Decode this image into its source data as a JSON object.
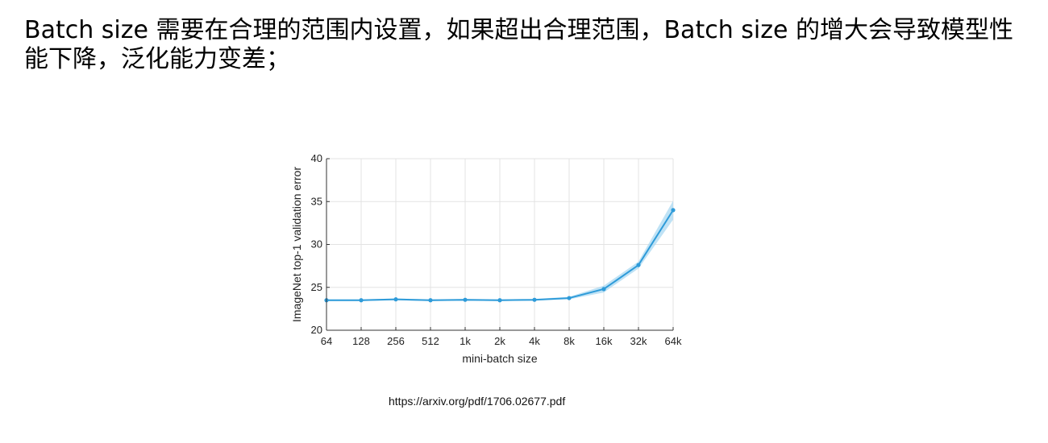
{
  "headline": "Batch size 需要在合理的范围内设置，如果超出合理范围，Batch size 的增大会导致模型性能下降，泛化能力变差；",
  "chart_data": {
    "type": "line",
    "categories": [
      "64",
      "128",
      "256",
      "512",
      "1k",
      "2k",
      "4k",
      "8k",
      "16k",
      "32k",
      "64k"
    ],
    "series": [
      {
        "values": [
          23.5,
          23.5,
          23.6,
          23.5,
          23.55,
          23.5,
          23.55,
          23.75,
          24.8,
          27.6,
          34.0
        ],
        "lower": [
          23.4,
          23.4,
          23.5,
          23.4,
          23.45,
          23.4,
          23.45,
          23.6,
          24.4,
          27.2,
          32.9
        ],
        "upper": [
          23.6,
          23.6,
          23.7,
          23.6,
          23.65,
          23.6,
          23.65,
          23.9,
          25.2,
          28.0,
          35.1
        ]
      }
    ],
    "xlabel": "mini-batch size",
    "ylabel": "ImageNet top-1 validation error",
    "ylim": [
      20,
      40
    ],
    "yticks": [
      20,
      25,
      30,
      35,
      40
    ],
    "grid": true,
    "line_color": "#2e9bd9",
    "band_color": "#a9d8f2"
  },
  "source_url": "https://arxiv.org/pdf/1706.02677.pdf"
}
